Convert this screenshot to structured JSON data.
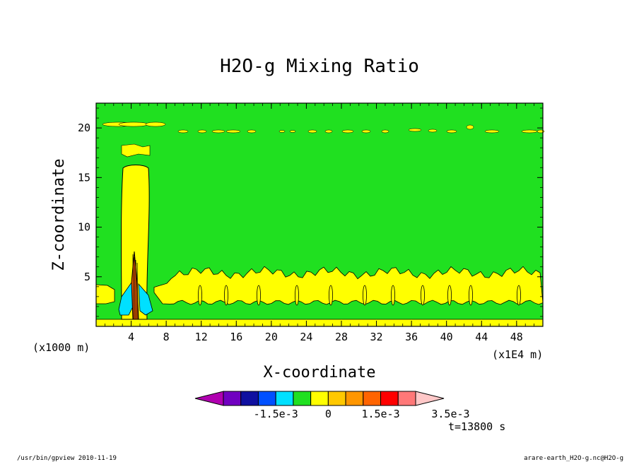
{
  "chart_data": {
    "type": "heatmap",
    "title": "H2O-g Mixing Ratio",
    "xlabel": "X-coordinate",
    "ylabel": "Z-coordinate",
    "x_unit_left": "(x1000 m)",
    "x_unit_right": "(x1E4 m)",
    "xlim": [
      0,
      51
    ],
    "ylim": [
      0,
      22.5
    ],
    "xticks": [
      "4",
      "8",
      "12",
      "16",
      "20",
      "24",
      "28",
      "32",
      "36",
      "40",
      "44",
      "48"
    ],
    "xtick_values": [
      4,
      8,
      12,
      16,
      20,
      24,
      28,
      32,
      36,
      40,
      44,
      48
    ],
    "yticks": [
      "5",
      "10",
      "15",
      "20"
    ],
    "ytick_values": [
      5,
      10,
      15,
      20
    ],
    "colorbar": {
      "levels": [
        -0.0035,
        -0.003,
        -0.0025,
        -0.002,
        -0.0015,
        -0.001,
        -0.0005,
        0,
        0.0005,
        0.001,
        0.0015,
        0.002,
        0.0025,
        0.003,
        0.0035
      ],
      "colors": [
        "#b000b0",
        "#7000c0",
        "#1010a0",
        "#0050ff",
        "#00e0ff",
        "#20e020",
        "#ffff00",
        "#ffc800",
        "#ff9600",
        "#ff6400",
        "#ff0000",
        "#ff7878",
        "#ffc8c8"
      ],
      "labels": [
        "-1.5e-3",
        "0",
        "1.5e-3",
        "3.5e-3"
      ],
      "label_values": [
        -0.0015,
        0,
        0.0015,
        0.0035
      ]
    },
    "regions": {
      "background": "#20e020",
      "moisture_layer": "#ffff00",
      "negative_anomaly": "#00e0ff",
      "core": "#ff6400"
    }
  },
  "time_label": "t=13800 s",
  "footer": {
    "left": "/usr/bin/gpview   2010-11-19",
    "right": "arare-earth_H2O-g.nc@H2O-g"
  }
}
